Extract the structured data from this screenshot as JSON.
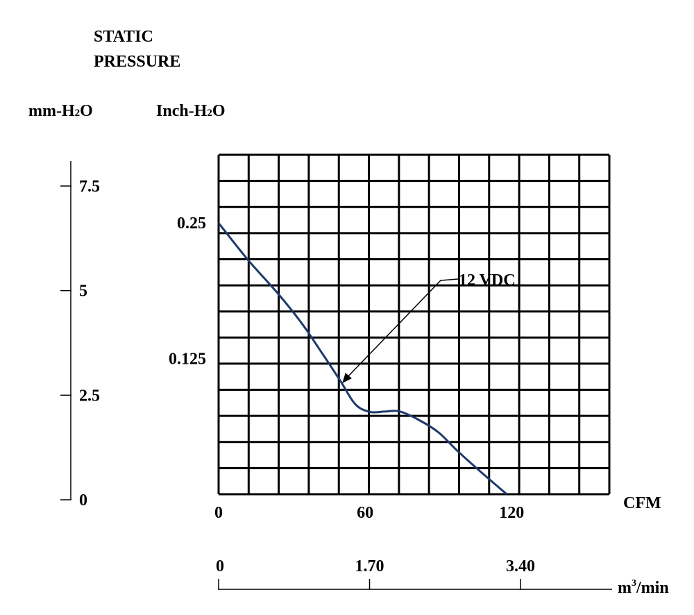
{
  "chart_data": {
    "type": "line",
    "title_line1": "STATIC",
    "title_line2": "PRESSURE",
    "left_axis_label_prefix": "mm-H",
    "left_axis_label_sub": "2",
    "left_axis_label_suffix": "O",
    "inner_axis_label_prefix": "Inch-H",
    "inner_axis_label_sub": "2",
    "inner_axis_label_suffix": "O",
    "x_label": "CFM",
    "x2_label_prefix": "m",
    "x2_label_sup": "3",
    "x2_label_suffix": "/min",
    "mm_ticks": [
      {
        "value": 7.5,
        "label": "7.5"
      },
      {
        "value": 5,
        "label": "5"
      },
      {
        "value": 2.5,
        "label": "2.5"
      },
      {
        "value": 0,
        "label": "0"
      }
    ],
    "inch_ticks": [
      {
        "value": 0.25,
        "label": "0.25"
      },
      {
        "value": 0.125,
        "label": "0.125"
      }
    ],
    "x_ticks": [
      {
        "value": 0,
        "label": "0"
      },
      {
        "value": 60,
        "label": "60"
      },
      {
        "value": 120,
        "label": "120"
      }
    ],
    "x2_ticks": [
      {
        "value": 0,
        "label": "0"
      },
      {
        "value": 1.7,
        "label": "1.70"
      },
      {
        "value": 3.4,
        "label": "3.40"
      }
    ],
    "xlim": [
      0,
      160
    ],
    "ylim_inch": [
      0,
      0.3125
    ],
    "grid": true,
    "series": [
      {
        "name": "12 VDC",
        "color": "#1d3a6b",
        "x": [
          0,
          12,
          24,
          34,
          42,
          50,
          56,
          62,
          68,
          74,
          82,
          90,
          98,
          108,
          118
        ],
        "y": [
          0.2497,
          0.2158,
          0.1856,
          0.1575,
          0.1311,
          0.1039,
          0.0828,
          0.0758,
          0.0761,
          0.0763,
          0.0684,
          0.057,
          0.0395,
          0.0193,
          0.0
        ]
      }
    ]
  }
}
